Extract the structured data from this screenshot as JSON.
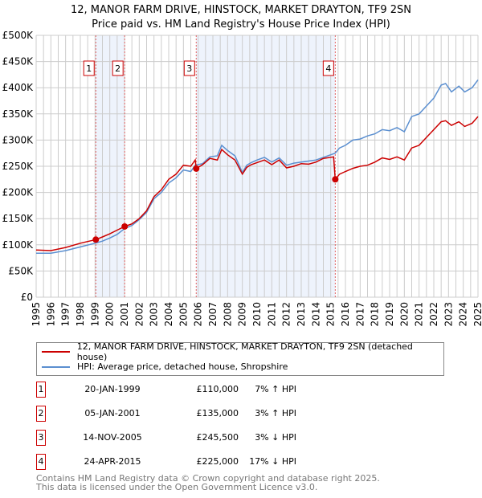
{
  "chart_data": {
    "type": "line",
    "title": "12, MANOR FARM DRIVE, HINSTOCK, MARKET DRAYTON, TF9 2SN",
    "subtitle": "Price paid vs. HM Land Registry's House Price Index (HPI)",
    "xlim": [
      1995,
      2025
    ],
    "ylim": [
      0,
      500000
    ],
    "x_ticks": [
      "1995",
      "1996",
      "1997",
      "1998",
      "1999",
      "2000",
      "2001",
      "2002",
      "2003",
      "2004",
      "2005",
      "2006",
      "2007",
      "2008",
      "2009",
      "2010",
      "2011",
      "2012",
      "2013",
      "2014",
      "2015",
      "2016",
      "2017",
      "2018",
      "2019",
      "2020",
      "2021",
      "2022",
      "2023",
      "2024",
      "2025"
    ],
    "y_ticks": [
      {
        "v": 0,
        "l": "£0"
      },
      {
        "v": 50000,
        "l": "£50K"
      },
      {
        "v": 100000,
        "l": "£100K"
      },
      {
        "v": 150000,
        "l": "£150K"
      },
      {
        "v": 200000,
        "l": "£200K"
      },
      {
        "v": 250000,
        "l": "£250K"
      },
      {
        "v": 300000,
        "l": "£300K"
      },
      {
        "v": 350000,
        "l": "£350K"
      },
      {
        "v": 400000,
        "l": "£400K"
      },
      {
        "v": 450000,
        "l": "£450K"
      },
      {
        "v": 500000,
        "l": "£500K"
      }
    ],
    "grid": true,
    "shaded_ranges": [
      [
        1999.05,
        2001.01
      ],
      [
        2005.87,
        2015.31
      ]
    ],
    "series": [
      {
        "name": "12, MANOR FARM DRIVE, HINSTOCK, MARKET DRAYTON, TF9 2SN (detached house)",
        "color": "#cc0000",
        "x": [
          1995,
          1996,
          1997,
          1998,
          1999.05,
          1999.5,
          2000,
          2000.5,
          2001.01,
          2001.5,
          2002,
          2002.5,
          2003,
          2003.5,
          2004,
          2004.5,
          2005,
          2005.5,
          2005.8,
          2005.87,
          2006.3,
          2006.8,
          2007.3,
          2007.6,
          2008,
          2008.5,
          2009,
          2009.3,
          2009.6,
          2010,
          2010.5,
          2011,
          2011.5,
          2012,
          2012.5,
          2013,
          2013.5,
          2014,
          2014.5,
          2015.2,
          2015.31,
          2015.6,
          2016,
          2016.5,
          2017,
          2017.5,
          2018,
          2018.5,
          2019,
          2019.5,
          2020,
          2020.5,
          2021,
          2021.5,
          2022,
          2022.5,
          2022.8,
          2023.2,
          2023.7,
          2024.1,
          2024.6,
          2025
        ],
        "y": [
          90000,
          89000,
          95000,
          103000,
          110000,
          115000,
          121000,
          128000,
          135000,
          140000,
          150000,
          165000,
          192000,
          205000,
          225000,
          235000,
          252000,
          250000,
          262000,
          245500,
          253000,
          265000,
          262000,
          282000,
          272000,
          262000,
          235000,
          248000,
          253000,
          257000,
          262000,
          253000,
          262000,
          247000,
          250000,
          255000,
          254000,
          258000,
          265000,
          268000,
          225000,
          235000,
          240000,
          246000,
          250000,
          252000,
          258000,
          266000,
          263000,
          268000,
          262000,
          285000,
          290000,
          305000,
          320000,
          335000,
          337000,
          328000,
          335000,
          326000,
          332000,
          345000
        ]
      },
      {
        "name": "HPI: Average price, detached house, Shropshire",
        "color": "#5b8fd0",
        "x": [
          1995,
          1996,
          1997,
          1998,
          1999,
          1999.5,
          2000,
          2000.5,
          2001,
          2001.5,
          2002,
          2002.5,
          2003,
          2003.5,
          2004,
          2004.5,
          2005,
          2005.5,
          2005.8,
          2006.3,
          2006.8,
          2007.3,
          2007.6,
          2008,
          2008.5,
          2009,
          2009.3,
          2009.6,
          2010,
          2010.5,
          2011,
          2011.5,
          2012,
          2012.5,
          2013,
          2013.5,
          2014,
          2014.5,
          2015,
          2015.3,
          2015.6,
          2016,
          2016.5,
          2017,
          2017.5,
          2018,
          2018.5,
          2019,
          2019.5,
          2020,
          2020.5,
          2021,
          2021.5,
          2022,
          2022.5,
          2022.8,
          2023.2,
          2023.7,
          2024.1,
          2024.6,
          2025
        ],
        "y": [
          84000,
          84000,
          89000,
          96000,
          103000,
          107000,
          113000,
          120000,
          131000,
          137000,
          148000,
          162000,
          188000,
          200000,
          218000,
          228000,
          243000,
          240000,
          252000,
          255000,
          268000,
          270000,
          290000,
          280000,
          270000,
          238000,
          252000,
          257000,
          262000,
          267000,
          258000,
          266000,
          252000,
          256000,
          258000,
          260000,
          262000,
          267000,
          272000,
          275000,
          285000,
          290000,
          300000,
          302000,
          308000,
          312000,
          320000,
          318000,
          324000,
          316000,
          345000,
          350000,
          365000,
          380000,
          405000,
          408000,
          392000,
          403000,
          392000,
          400000,
          415000
        ]
      }
    ],
    "markers": [
      {
        "label": "1",
        "x": 1999.05,
        "y": 110000
      },
      {
        "label": "2",
        "x": 2001.01,
        "y": 135000
      },
      {
        "label": "3",
        "x": 2005.87,
        "y": 245500
      },
      {
        "label": "4",
        "x": 2015.31,
        "y": 225000
      }
    ]
  },
  "legend": {
    "property": "12, MANOR FARM DRIVE, HINSTOCK, MARKET DRAYTON, TF9 2SN (detached house)",
    "hpi": "HPI: Average price, detached house, Shropshire"
  },
  "transactions": [
    {
      "num": "1",
      "date": "20-JAN-1999",
      "price": "£110,000",
      "hpi": "7% ↑ HPI"
    },
    {
      "num": "2",
      "date": "05-JAN-2001",
      "price": "£135,000",
      "hpi": "3% ↑ HPI"
    },
    {
      "num": "3",
      "date": "14-NOV-2005",
      "price": "£245,500",
      "hpi": "3% ↓ HPI"
    },
    {
      "num": "4",
      "date": "24-APR-2015",
      "price": "£225,000",
      "hpi": "17% ↓ HPI"
    }
  ],
  "footer": {
    "line1": "Contains HM Land Registry data © Crown copyright and database right 2025.",
    "line2": "This data is licensed under the Open Government Licence v3.0."
  }
}
